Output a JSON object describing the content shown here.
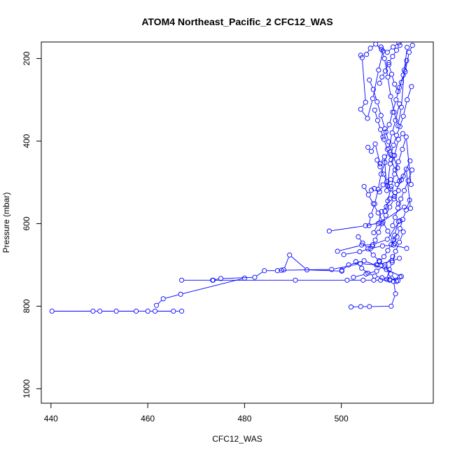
{
  "chart_data": {
    "type": "line",
    "title": "ATOM4 Northeast_Pacific_2 CFC12_WAS",
    "xlabel": "CFC12_WAS",
    "ylabel": "Pressure (mbar)",
    "xlim": [
      438,
      519
    ],
    "ylim": [
      1035,
      160
    ],
    "y_axis_reversed": true,
    "xticks": [
      440,
      460,
      480,
      500
    ],
    "yticks": [
      200,
      400,
      600,
      800,
      1000
    ],
    "series_color": "#0000ff",
    "marker": "open-circle",
    "grid": false,
    "legend": "none",
    "series": [
      {
        "points": [
          [
            440.2,
            812
          ],
          [
            448.7,
            812
          ],
          [
            450.1,
            812
          ],
          [
            453.5,
            812
          ],
          [
            457.6,
            812
          ],
          [
            460.0,
            812
          ],
          [
            461.5,
            812
          ],
          [
            465.3,
            812
          ],
          [
            467.0,
            812
          ]
        ]
      },
      {
        "points": [
          [
            461.8,
            798
          ],
          [
            463.2,
            782
          ],
          [
            466.8,
            771
          ],
          [
            480.0,
            732
          ]
        ]
      },
      {
        "points": [
          [
            467.0,
            737
          ],
          [
            473.4,
            737
          ],
          [
            475.1,
            733
          ],
          [
            482.1,
            730
          ],
          [
            484.1,
            714
          ],
          [
            486.8,
            714
          ],
          [
            488.1,
            712
          ],
          [
            489.3,
            676
          ],
          [
            492.9,
            712
          ],
          [
            500.1,
            715
          ]
        ]
      },
      {
        "points": [
          [
            473.5,
            737
          ],
          [
            490.5,
            737
          ],
          [
            501.2,
            737
          ],
          [
            504.5,
            737
          ],
          [
            506.7,
            737
          ],
          [
            508.1,
            737
          ],
          [
            510.0,
            737
          ],
          [
            512.1,
            729
          ]
        ]
      },
      {
        "points": [
          [
            487.6,
            713
          ],
          [
            498.0,
            711
          ],
          [
            503.9,
            697
          ],
          [
            507.5,
            700
          ],
          [
            510.5,
            690
          ],
          [
            512.0,
            684
          ]
        ]
      },
      {
        "points": [
          [
            497.5,
            618
          ],
          [
            505.0,
            605
          ],
          [
            508.0,
            598
          ],
          [
            513.0,
            560
          ]
        ]
      },
      {
        "points": [
          [
            499.2,
            667
          ],
          [
            504.2,
            652
          ],
          [
            506.5,
            651
          ],
          [
            509.5,
            638
          ],
          [
            512.1,
            593
          ]
        ]
      },
      {
        "points": [
          [
            500.1,
            713
          ],
          [
            501.5,
            700
          ],
          [
            504.7,
            690
          ],
          [
            509.3,
            711
          ],
          [
            512.4,
            728
          ]
        ]
      },
      {
        "points": [
          [
            500.5,
            675
          ],
          [
            503.8,
            668
          ],
          [
            506.0,
            660
          ],
          [
            508.5,
            654
          ],
          [
            510.8,
            652
          ],
          [
            513.5,
            660
          ]
        ]
      },
      {
        "points": [
          [
            502.0,
            802
          ],
          [
            504.0,
            801
          ],
          [
            505.8,
            801
          ],
          [
            510.3,
            800
          ],
          [
            511.2,
            770
          ],
          [
            510.8,
            740
          ]
        ]
      },
      {
        "points": [
          [
            502.5,
            730
          ],
          [
            505.1,
            722
          ],
          [
            507.3,
            715
          ],
          [
            509.0,
            700
          ],
          [
            510.6,
            680
          ]
        ]
      },
      {
        "points": [
          [
            504.0,
            192
          ],
          [
            504.3,
            198
          ],
          [
            505.0,
            306
          ],
          [
            504.0,
            323
          ],
          [
            505.4,
            345
          ],
          [
            506.5,
            297
          ],
          [
            507.7,
            228
          ],
          [
            508.6,
            182
          ]
        ]
      },
      {
        "points": [
          [
            505.5,
            415
          ],
          [
            506.2,
            425
          ],
          [
            507.0,
            407
          ],
          [
            508.0,
            455
          ],
          [
            508.9,
            438
          ],
          [
            509.4,
            520
          ],
          [
            510.1,
            455
          ],
          [
            511.0,
            435
          ],
          [
            511.8,
            396
          ],
          [
            512.7,
            382
          ]
        ]
      },
      {
        "points": [
          [
            505.7,
            605
          ],
          [
            506.1,
            580
          ],
          [
            506.9,
            552
          ],
          [
            507.6,
            517
          ],
          [
            508.2,
            480
          ],
          [
            509.0,
            452
          ],
          [
            509.8,
            418
          ],
          [
            510.5,
            380
          ],
          [
            511.2,
            350
          ],
          [
            512.0,
            310
          ]
        ]
      },
      {
        "points": [
          [
            506.2,
            519
          ],
          [
            506.8,
            515
          ],
          [
            507.9,
            523
          ],
          [
            508.6,
            506
          ],
          [
            509.5,
            508
          ],
          [
            510.2,
            493
          ],
          [
            511.5,
            505
          ],
          [
            512.8,
            485
          ],
          [
            514.2,
            448
          ]
        ]
      },
      {
        "points": [
          [
            506.7,
            622
          ],
          [
            507.6,
            600
          ],
          [
            508.3,
            571
          ],
          [
            509.3,
            559
          ],
          [
            510.0,
            540
          ],
          [
            511.1,
            525
          ],
          [
            512.4,
            494
          ],
          [
            513.4,
            468
          ],
          [
            514.3,
            563
          ]
        ]
      },
      {
        "points": [
          [
            507.2,
            700
          ],
          [
            507.9,
            692
          ],
          [
            508.8,
            680
          ],
          [
            509.6,
            665
          ],
          [
            510.3,
            651
          ],
          [
            511.0,
            628
          ],
          [
            511.8,
            595
          ]
        ]
      },
      {
        "points": [
          [
            507.9,
            260
          ],
          [
            508.4,
            245
          ],
          [
            509.1,
            230
          ],
          [
            509.8,
            210
          ],
          [
            510.6,
            195
          ],
          [
            511.4,
            180
          ],
          [
            512.1,
            168
          ]
        ]
      },
      {
        "points": [
          [
            508.2,
            172
          ],
          [
            508.9,
            200
          ],
          [
            509.6,
            245
          ],
          [
            510.2,
            292
          ],
          [
            510.9,
            330
          ],
          [
            511.7,
            363
          ],
          [
            512.4,
            318
          ],
          [
            513.0,
            228
          ],
          [
            513.6,
            173
          ]
        ]
      },
      {
        "points": [
          [
            508.6,
            390
          ],
          [
            509.2,
            378
          ],
          [
            509.9,
            360
          ],
          [
            510.6,
            330
          ],
          [
            511.3,
            300
          ],
          [
            512.0,
            270
          ],
          [
            512.8,
            240
          ],
          [
            513.5,
            205
          ]
        ]
      },
      {
        "points": [
          [
            509.0,
            570
          ],
          [
            509.6,
            545
          ],
          [
            510.3,
            510
          ],
          [
            511.0,
            480
          ],
          [
            511.8,
            450
          ],
          [
            512.6,
            420
          ],
          [
            513.4,
            390
          ],
          [
            514.4,
            505
          ]
        ]
      },
      {
        "points": [
          [
            509.4,
            735
          ],
          [
            509.9,
            711
          ],
          [
            510.5,
            694
          ],
          [
            511.2,
            667
          ],
          [
            512.0,
            645
          ],
          [
            512.8,
            620
          ]
        ]
      },
      {
        "points": [
          [
            509.8,
            215
          ],
          [
            510.4,
            238
          ],
          [
            511.0,
            262
          ],
          [
            511.7,
            280
          ],
          [
            512.4,
            258
          ],
          [
            513.2,
            232
          ],
          [
            514.0,
            185
          ],
          [
            514.7,
            168
          ]
        ]
      },
      {
        "points": [
          [
            510.2,
            433
          ],
          [
            510.8,
            410
          ],
          [
            511.4,
            386
          ],
          [
            512.1,
            365
          ],
          [
            512.8,
            340
          ],
          [
            513.6,
            300
          ],
          [
            514.5,
            268
          ]
        ]
      },
      {
        "points": [
          [
            510.6,
            605
          ],
          [
            511.1,
            585
          ],
          [
            511.7,
            562
          ],
          [
            512.3,
            540
          ],
          [
            513.0,
            520
          ],
          [
            513.8,
            496
          ],
          [
            514.6,
            470
          ]
        ]
      },
      {
        "points": [
          [
            511.0,
            648
          ],
          [
            511.5,
            632
          ],
          [
            512.1,
            612
          ],
          [
            512.7,
            590
          ],
          [
            513.4,
            567
          ],
          [
            514.1,
            543
          ]
        ]
      },
      {
        "points": [
          [
            505.2,
            190
          ],
          [
            506.0,
            175
          ],
          [
            507.1,
            165
          ],
          [
            508.3,
            178
          ],
          [
            509.5,
            185
          ],
          [
            510.7,
            172
          ],
          [
            511.9,
            162
          ]
        ]
      },
      {
        "points": [
          [
            505.8,
            252
          ],
          [
            506.6,
            275
          ],
          [
            507.4,
            305
          ],
          [
            508.2,
            338
          ],
          [
            509.0,
            370
          ],
          [
            509.8,
            402
          ],
          [
            510.7,
            435
          ],
          [
            511.6,
            465
          ]
        ]
      },
      {
        "points": [
          [
            506.4,
            655
          ],
          [
            507.0,
            640
          ],
          [
            507.7,
            621
          ],
          [
            508.4,
            600
          ],
          [
            509.2,
            580
          ],
          [
            510.0,
            560
          ],
          [
            510.9,
            540
          ],
          [
            511.8,
            520
          ]
        ]
      },
      {
        "points": [
          [
            503.5,
            632
          ],
          [
            504.4,
            647
          ],
          [
            505.5,
            661
          ],
          [
            506.6,
            676
          ],
          [
            507.8,
            690
          ],
          [
            509.0,
            705
          ],
          [
            510.2,
            722
          ],
          [
            511.4,
            740
          ]
        ]
      },
      {
        "points": [
          [
            506.9,
            325
          ],
          [
            507.5,
            350
          ],
          [
            508.1,
            372
          ],
          [
            508.8,
            396
          ],
          [
            509.5,
            420
          ],
          [
            510.3,
            445
          ],
          [
            511.1,
            470
          ],
          [
            512.0,
            497
          ]
        ]
      },
      {
        "points": [
          [
            507.4,
            446
          ],
          [
            508.0,
            462
          ],
          [
            508.7,
            480
          ],
          [
            509.4,
            498
          ],
          [
            510.2,
            516
          ],
          [
            511.0,
            534
          ],
          [
            511.8,
            552
          ]
        ]
      },
      {
        "points": [
          [
            504.7,
            510
          ],
          [
            505.6,
            530
          ],
          [
            506.6,
            552
          ],
          [
            507.6,
            574
          ],
          [
            508.6,
            596
          ],
          [
            509.6,
            618
          ],
          [
            510.7,
            640
          ]
        ]
      },
      {
        "points": [
          [
            503.0,
            692
          ],
          [
            504.2,
            708
          ],
          [
            505.5,
            720
          ],
          [
            506.9,
            727
          ],
          [
            508.4,
            731
          ],
          [
            510.0,
            735
          ],
          [
            511.7,
            738
          ]
        ]
      }
    ]
  }
}
